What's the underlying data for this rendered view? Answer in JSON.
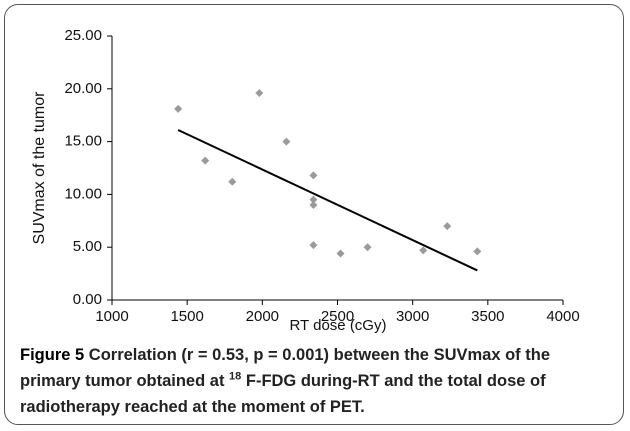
{
  "chart_data": {
    "type": "scatter",
    "x_label": "RT dose (cGy)",
    "y_label": "SUVmax of the tumor",
    "x": [
      1440,
      1620,
      1800,
      1980,
      2160,
      2340,
      2340,
      2340,
      2340,
      2520,
      2700,
      3070,
      3230,
      3430
    ],
    "values": [
      18.1,
      13.2,
      11.2,
      19.6,
      15.0,
      11.8,
      9.5,
      9.0,
      5.2,
      4.4,
      5.0,
      4.7,
      7.0,
      4.6
    ],
    "color": "#9a9a9a",
    "trendline": {
      "x": [
        1440,
        3430
      ],
      "y": [
        16.1,
        2.8
      ],
      "color": "#000000"
    },
    "xlim": [
      1000,
      4000
    ],
    "xticks": [
      1000,
      1500,
      2000,
      2500,
      3000,
      3500,
      4000
    ],
    "ylim": [
      0,
      25
    ],
    "yticks": [
      {
        "value": 0,
        "label": "0.00"
      },
      {
        "value": 5,
        "label": "5.00"
      },
      {
        "value": 10,
        "label": "10.00"
      },
      {
        "value": 15,
        "label": "15.00"
      },
      {
        "value": 20,
        "label": "20.00"
      },
      {
        "value": 25,
        "label": "25.00"
      }
    ]
  },
  "caption": {
    "label": "Figure 5",
    "text_before": "Correlation (r = 0.53, p = 0.001) between the SUVmax of the primary tumor obtained at ",
    "superscript": "18",
    "text_after": " F-FDG during-RT and the total dose of radiotherapy reached at the moment of PET."
  }
}
